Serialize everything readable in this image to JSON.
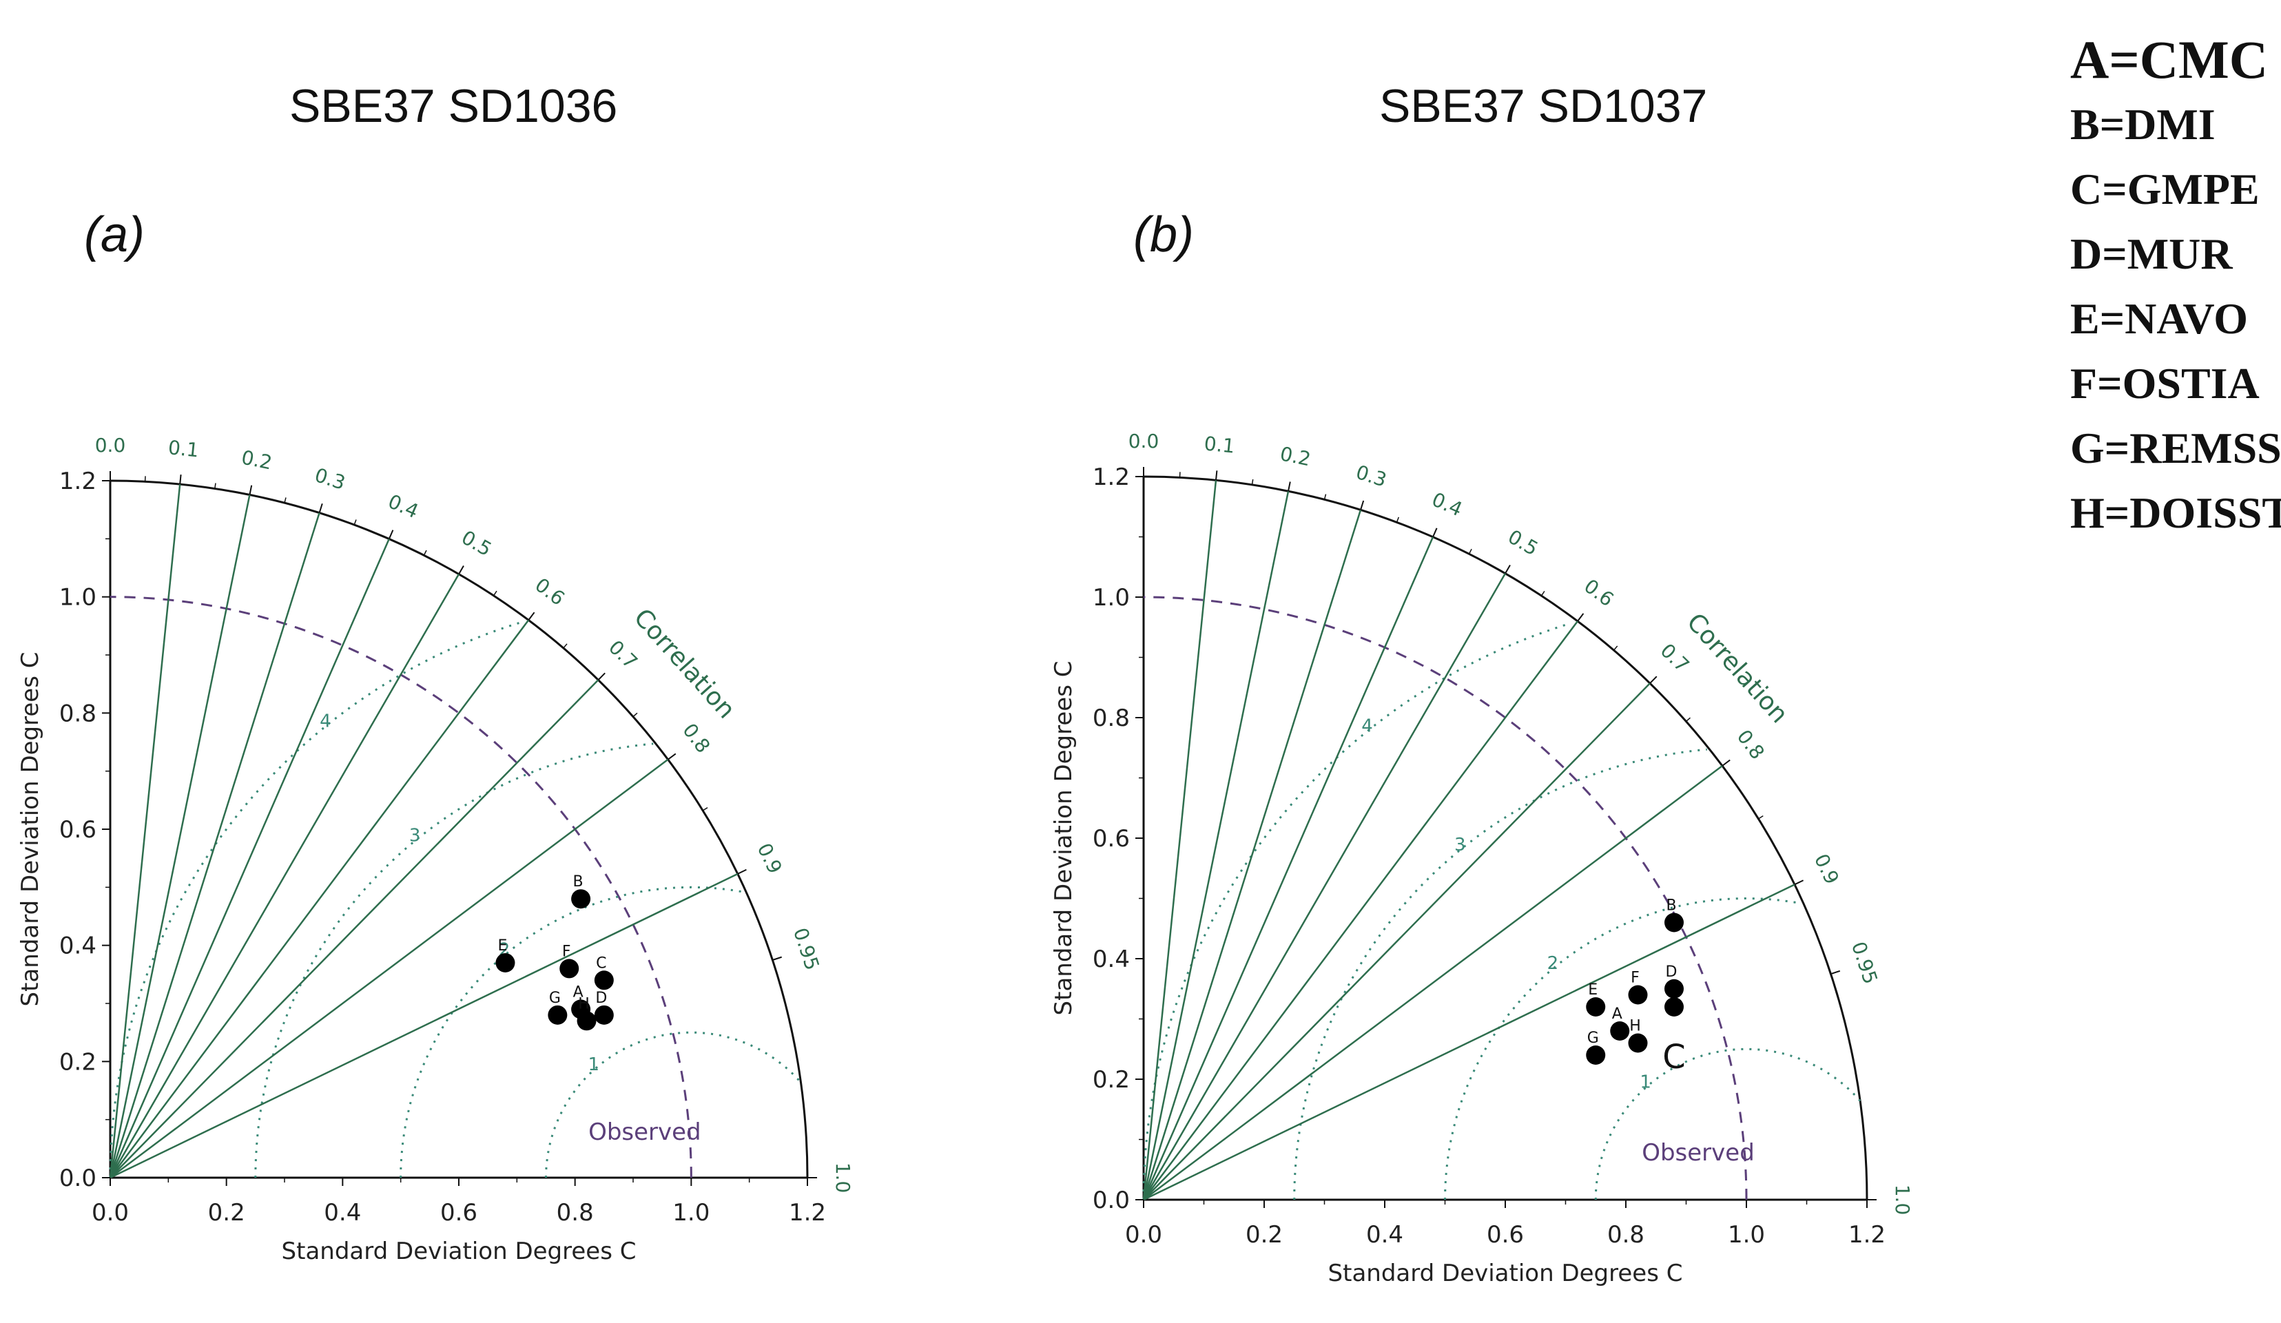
{
  "chart_data": [
    {
      "type": "scatter",
      "subtype": "taylor-diagram",
      "panel": "(a)",
      "title": "SBE37 SD1036",
      "xlabel": "Standard Deviation Degrees C",
      "ylabel": "Standard Deviation Degrees C",
      "corr_title": "Correlation",
      "observed_label": "Observed",
      "xlim": [
        0.0,
        1.2
      ],
      "ylim": [
        0.0,
        1.2
      ],
      "ticks": [
        "0.0",
        "0.2",
        "0.4",
        "0.6",
        "0.8",
        "1.0",
        "1.2"
      ],
      "corr_ticks": [
        "0.0",
        "0.1",
        "0.2",
        "0.3",
        "0.4",
        "0.5",
        "0.6",
        "0.7",
        "0.8",
        "0.9",
        "0.95",
        "1.0"
      ],
      "rms_labels": [
        "1",
        "2",
        "3",
        "4"
      ],
      "points": [
        {
          "label": "A",
          "x": 0.81,
          "y": 0.29
        },
        {
          "label": "B",
          "x": 0.81,
          "y": 0.48
        },
        {
          "label": "C",
          "x": 0.85,
          "y": 0.34
        },
        {
          "label": "D",
          "x": 0.85,
          "y": 0.28
        },
        {
          "label": "E",
          "x": 0.68,
          "y": 0.37
        },
        {
          "label": "F",
          "x": 0.79,
          "y": 0.36
        },
        {
          "label": "G",
          "x": 0.77,
          "y": 0.28
        },
        {
          "label": "H",
          "x": 0.82,
          "y": 0.27
        }
      ]
    },
    {
      "type": "scatter",
      "subtype": "taylor-diagram",
      "panel": "(b)",
      "title": "SBE37 SD1037",
      "xlabel": "Standard Deviation Degrees C",
      "ylabel": "Standard Deviation Degrees C",
      "corr_title": "Correlation",
      "observed_label": "Observed",
      "extra_label": "C",
      "xlim": [
        0.0,
        1.2
      ],
      "ylim": [
        0.0,
        1.2
      ],
      "ticks": [
        "0.0",
        "0.2",
        "0.4",
        "0.6",
        "0.8",
        "1.0",
        "1.2"
      ],
      "corr_ticks": [
        "0.0",
        "0.1",
        "0.2",
        "0.3",
        "0.4",
        "0.5",
        "0.6",
        "0.7",
        "0.8",
        "0.9",
        "0.95",
        "1.0"
      ],
      "rms_labels": [
        "1",
        "2",
        "3",
        "4"
      ],
      "points": [
        {
          "label": "A",
          "x": 0.79,
          "y": 0.28
        },
        {
          "label": "B",
          "x": 0.88,
          "y": 0.46
        },
        {
          "label": "C",
          "x": 0.88,
          "y": 0.32
        },
        {
          "label": "D",
          "x": 0.88,
          "y": 0.35
        },
        {
          "label": "E",
          "x": 0.75,
          "y": 0.32
        },
        {
          "label": "F",
          "x": 0.82,
          "y": 0.34
        },
        {
          "label": "G",
          "x": 0.75,
          "y": 0.24
        },
        {
          "label": "H",
          "x": 0.82,
          "y": 0.26
        }
      ]
    }
  ],
  "legend": [
    "A=CMC",
    "B=DMI",
    "C=GMPE",
    "D=MUR",
    "E=NAVO",
    "F=OSTIA",
    "G=REMSS",
    "H=DOISST"
  ],
  "colors": {
    "axis": "#111111",
    "correlation": "#2e6e4e",
    "rms": "#3a8a78",
    "observed": "#5b3f7a",
    "marker": "#000000"
  }
}
